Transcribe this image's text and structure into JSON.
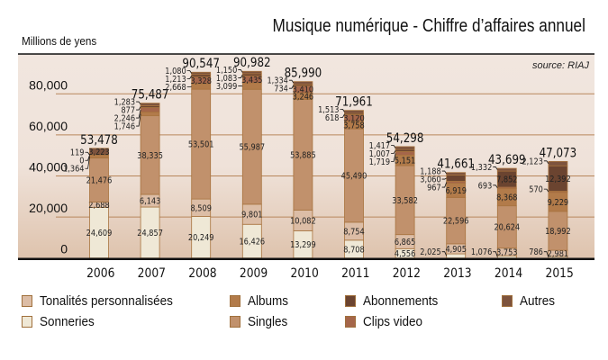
{
  "chart_data": {
    "type": "bar",
    "stacked": true,
    "title": "Musique numérique - Chiffre d’affaires annuel",
    "ylabel": "Millions de yens",
    "source": "source: RIAJ",
    "categories": [
      "2006",
      "2007",
      "2008",
      "2009",
      "2010",
      "2011",
      "2012",
      "2013",
      "2014",
      "2015"
    ],
    "ylim": [
      0,
      95000
    ],
    "yticks": [
      0,
      20000,
      40000,
      60000,
      80000
    ],
    "ytick_labels": [
      "0",
      "20,000",
      "40,000",
      "60,000",
      "80,000"
    ],
    "grid": true,
    "legend_position": "bottom",
    "series": [
      {
        "name": "Sonneries",
        "color": "#efe8d6",
        "values": [
          24609,
          24857,
          20249,
          16426,
          13299,
          8708,
          4556,
          2025,
          1076,
          786
        ]
      },
      {
        "name": "Tonalités personnalisées",
        "color": "#dcbda6",
        "values": [
          2688,
          6143,
          8509,
          9801,
          10082,
          8754,
          6865,
          4905,
          3753,
          2981
        ]
      },
      {
        "name": "Singles",
        "color": "#c1916c",
        "values": [
          21476,
          38335,
          53501,
          55987,
          53885,
          45490,
          33582,
          22596,
          20624,
          18992
        ]
      },
      {
        "name": "Albums",
        "color": "#b27b4a",
        "values": [
          1364,
          1746,
          2668,
          3099,
          3246,
          3758,
          5151,
          6919,
          8368,
          9229
        ]
      },
      {
        "name": "Clips video",
        "color": "#a5664a",
        "values": [
          0,
          2246,
          3328,
          3435,
          3410,
          3120,
          1719,
          967,
          693,
          570
        ]
      },
      {
        "name": "Abonnements",
        "color": "#6b4430",
        "values": [
          119,
          877,
          1213,
          1083,
          734,
          618,
          1007,
          3060,
          7852,
          12392
        ]
      },
      {
        "name": "Autres",
        "color": "#7d533d",
        "values": [
          3223,
          1283,
          1080,
          1150,
          1334,
          1513,
          1417,
          1188,
          1332,
          2123
        ]
      }
    ],
    "totals": [
      53478,
      75487,
      90547,
      90982,
      85990,
      71961,
      54298,
      41661,
      43699,
      47073
    ],
    "legend": [
      [
        "Tonalités personnalisées",
        "Albums",
        "Abonnements",
        "Autres"
      ],
      [
        "Sonneries",
        "Singles",
        "Clips video"
      ]
    ]
  }
}
